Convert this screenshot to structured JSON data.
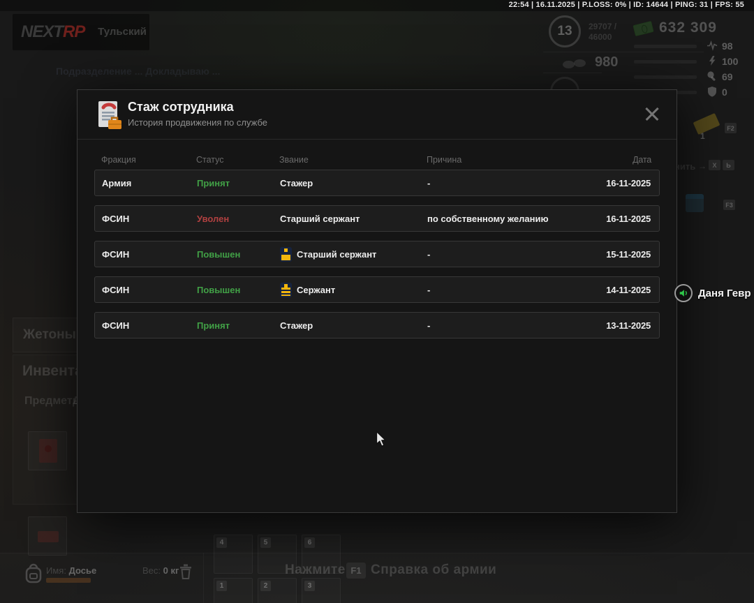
{
  "status_bar": {
    "text": "22:54 | 16.11.2025 | P.LOSS: 0% | ID: 14644 | PING: 31 | FPS: 55"
  },
  "hud": {
    "logo": {
      "brand_next": "NEXT",
      "brand_rp": "RP",
      "server_name": "Тульский"
    },
    "chat_fragment": "Подразделение ... Докладываю ...",
    "level": {
      "value": "13",
      "xp_line1": "29707 /",
      "xp_line2": "46000"
    },
    "money": "632 309",
    "coins": "980",
    "stats": [
      {
        "name": "health",
        "icon": "heartbeat-icon",
        "value": "98",
        "fill_pct": 67,
        "bar_color": "#a03030"
      },
      {
        "name": "energy",
        "icon": "lightning-icon",
        "value": "100",
        "fill_pct": 94,
        "bar_color": "#2f6fa8"
      },
      {
        "name": "hunger",
        "icon": "food-icon",
        "value": "69",
        "fill_pct": 72,
        "bar_color": "#a8862f"
      },
      {
        "name": "armor",
        "icon": "shield-icon",
        "value": "0",
        "fill_pct": 0,
        "bar_color": "#777777"
      }
    ],
    "side_widgets": {
      "ticket_count": "1",
      "key_f2": "F2",
      "key_f3": "F3",
      "hint_fragment": "нить",
      "hint_arrow": "→",
      "hint_key_x": "X",
      "hint_key_soft": "Ь"
    },
    "left_panels": {
      "tokens_label": "Жетоны",
      "inventory_title": "Инвентарь",
      "items_tab": "Предметы",
      "dossier_tab": "Досье"
    },
    "hotbar": {
      "top_row": [
        "4",
        "5",
        "6"
      ],
      "bottom_row": [
        "1",
        "2",
        "3"
      ]
    },
    "bag": {
      "name_label": "Имя:",
      "name_value": "Досье",
      "weight_label": "Вес:",
      "weight_value": "0 кг"
    },
    "help_bar": {
      "press_label": "Нажмите",
      "key": "F1",
      "text": "Справка об армии"
    },
    "voice": {
      "player_name": "Даня Гевр"
    }
  },
  "modal": {
    "title": "Стаж сотрудника",
    "subtitle": "История продвижения по службе",
    "colors": {
      "status_green": "#41a046",
      "status_red": "#b04040"
    },
    "table": {
      "headers": [
        "Фракция",
        "Статус",
        "Звание",
        "Причина",
        "Дата"
      ],
      "rows": [
        {
          "faction": "Армия",
          "status": "Принят",
          "status_type": "green",
          "rank": "Стажер",
          "rank_icon": "none",
          "reason": "-",
          "date": "16-11-2025"
        },
        {
          "faction": "ФСИН",
          "status": "Уволен",
          "status_type": "red",
          "rank": "Старший сержант",
          "rank_icon": "none",
          "reason": "по собственному желанию",
          "date": "16-11-2025"
        },
        {
          "faction": "ФСИН",
          "status": "Повышен",
          "status_type": "green",
          "rank": "Старший сержант",
          "rank_icon": "epaulette-senior-sergeant-icon",
          "reason": "-",
          "date": "15-11-2025"
        },
        {
          "faction": "ФСИН",
          "status": "Повышен",
          "status_type": "green",
          "rank": "Сержант",
          "rank_icon": "epaulette-sergeant-icon",
          "reason": "-",
          "date": "14-11-2025"
        },
        {
          "faction": "ФСИН",
          "status": "Принят",
          "status_type": "green",
          "rank": "Стажер",
          "rank_icon": "none",
          "reason": "-",
          "date": "13-11-2025"
        }
      ]
    }
  }
}
